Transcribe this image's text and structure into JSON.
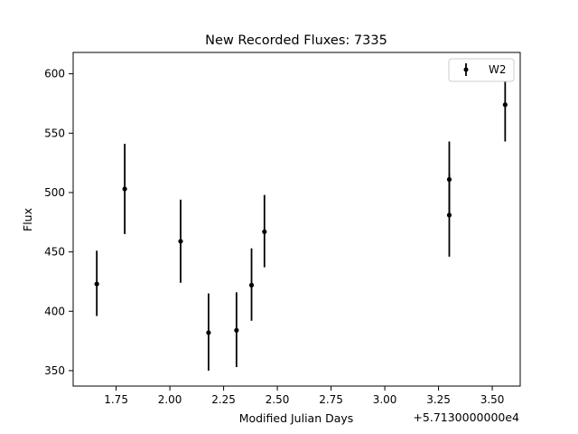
{
  "chart_data": {
    "type": "scatter",
    "title": "New Recorded Fluxes: 7335",
    "xlabel": "Modified Julian Days",
    "ylabel": "Flux",
    "x_offset_label": "+5.7130000000e4",
    "xlim": [
      1.55,
      3.63
    ],
    "ylim": [
      337,
      618
    ],
    "x_ticks": [
      1.75,
      2.0,
      2.25,
      2.5,
      2.75,
      3.0,
      3.25,
      3.5
    ],
    "x_tick_labels": [
      "1.75",
      "2.00",
      "2.25",
      "2.50",
      "2.75",
      "3.00",
      "3.25",
      "3.50"
    ],
    "y_ticks": [
      350,
      400,
      450,
      500,
      550,
      600
    ],
    "y_tick_labels": [
      "350",
      "400",
      "450",
      "500",
      "550",
      "600"
    ],
    "grid": false,
    "legend_position": "top-right",
    "series": [
      {
        "name": "W2",
        "color": "#000000",
        "marker": "circle",
        "points": [
          {
            "x": 1.66,
            "y": 423,
            "yerr_low": 396,
            "yerr_high": 451
          },
          {
            "x": 1.79,
            "y": 503,
            "yerr_low": 465,
            "yerr_high": 541
          },
          {
            "x": 2.05,
            "y": 459,
            "yerr_low": 424,
            "yerr_high": 494
          },
          {
            "x": 2.18,
            "y": 382,
            "yerr_low": 350,
            "yerr_high": 415
          },
          {
            "x": 2.31,
            "y": 384,
            "yerr_low": 353,
            "yerr_high": 416
          },
          {
            "x": 2.38,
            "y": 422,
            "yerr_low": 392,
            "yerr_high": 453
          },
          {
            "x": 2.44,
            "y": 467,
            "yerr_low": 437,
            "yerr_high": 498
          },
          {
            "x": 3.3,
            "y": 511,
            "yerr_low": 480,
            "yerr_high": 543
          },
          {
            "x": 3.3,
            "y": 481,
            "yerr_low": 446,
            "yerr_high": 516
          },
          {
            "x": 3.56,
            "y": 574,
            "yerr_low": 543,
            "yerr_high": 604
          }
        ]
      }
    ]
  }
}
